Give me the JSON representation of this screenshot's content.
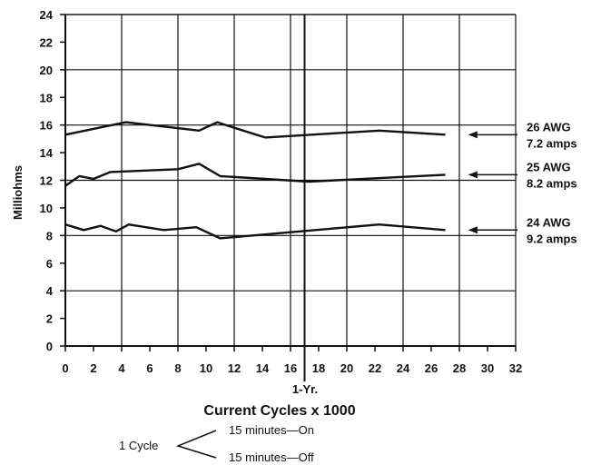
{
  "chart_data": {
    "type": "line",
    "title": "",
    "xlabel": "Current Cycles x 1000",
    "ylabel": "Milliohms",
    "xlim": [
      0,
      32
    ],
    "ylim": [
      0,
      24
    ],
    "x_ticks": [
      0,
      2,
      4,
      6,
      8,
      10,
      12,
      14,
      16,
      18,
      20,
      22,
      24,
      26,
      28,
      30,
      32
    ],
    "y_ticks": [
      0,
      2,
      4,
      6,
      8,
      10,
      12,
      14,
      16,
      18,
      20,
      22,
      24
    ],
    "grid": true,
    "marker": {
      "x": 17,
      "label": "1-Yr."
    },
    "series": [
      {
        "label_lines": [
          "26 AWG",
          "7.2 amps"
        ],
        "x": [
          0,
          4.3,
          9.5,
          10.8,
          12,
          14.2,
          22.3,
          27
        ],
        "y": [
          15.3,
          16.2,
          15.6,
          16.2,
          15.8,
          15.1,
          15.6,
          15.3
        ]
      },
      {
        "label_lines": [
          "25 AWG",
          "8.2 amps"
        ],
        "x": [
          0,
          1,
          2,
          3.2,
          8,
          9.5,
          11,
          17.3,
          27
        ],
        "y": [
          11.6,
          12.3,
          12.1,
          12.6,
          12.8,
          13.2,
          12.3,
          11.9,
          12.4
        ]
      },
      {
        "label_lines": [
          "24 AWG",
          "9.2 amps"
        ],
        "x": [
          0,
          1.3,
          2.5,
          3.6,
          4.5,
          7,
          9.3,
          11,
          22.3,
          27
        ],
        "y": [
          8.8,
          8.4,
          8.7,
          8.3,
          8.8,
          8.4,
          8.6,
          7.8,
          8.8,
          8.4
        ]
      }
    ]
  },
  "cycle_note": {
    "label": "1 Cycle",
    "on": "15 minutes—On",
    "off": "15 minutes—Off"
  }
}
